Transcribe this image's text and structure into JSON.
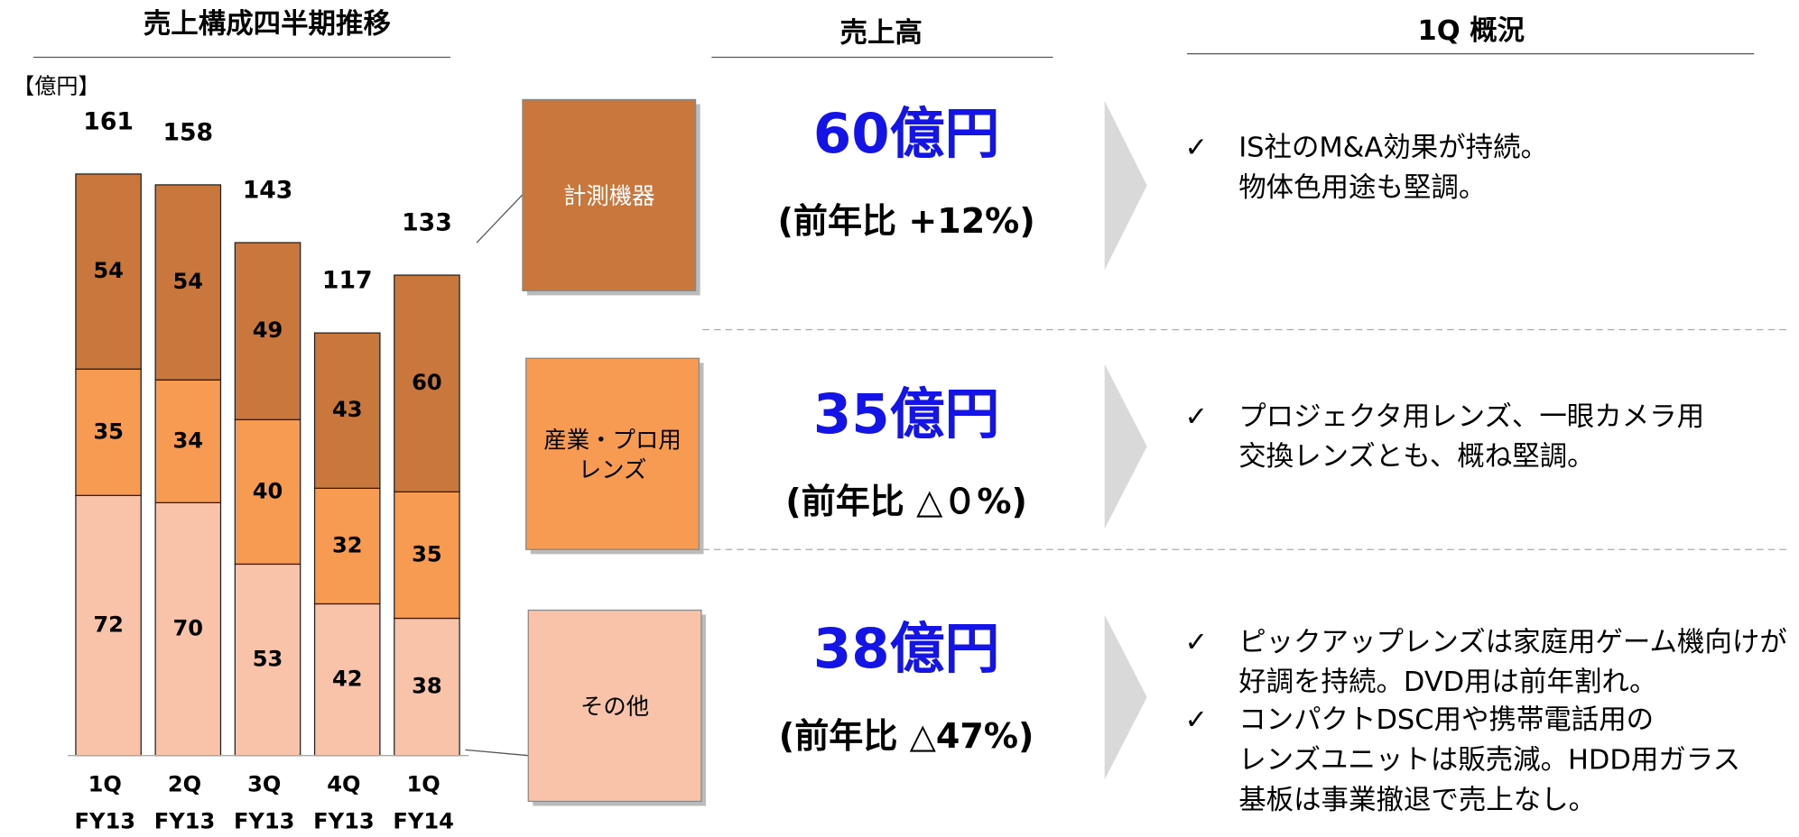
{
  "chart_data": {
    "type": "stacked_bar",
    "title": "売上構成四半期推移",
    "unit_label": "【億円】",
    "categories": [
      "1Q",
      "2Q",
      "3Q",
      "4Q",
      "1Q"
    ],
    "fiscal_years": [
      "FY13",
      "FY13",
      "FY13",
      "FY13",
      "FY14"
    ],
    "series": [
      {
        "name": "その他",
        "color": "#f9c3a9",
        "values": [
          72,
          70,
          53,
          42,
          38
        ]
      },
      {
        "name": "産業・プロ用レンズ",
        "color": "#f79a52",
        "values": [
          35,
          34,
          40,
          32,
          35
        ]
      },
      {
        "name": "計測機器",
        "color": "#c9773c",
        "values": [
          54,
          54,
          49,
          43,
          60
        ]
      }
    ],
    "totals": [
      161,
      158,
      143,
      117,
      133
    ]
  },
  "sales": {
    "title": "売上高",
    "items": [
      {
        "amount": "60億円",
        "yoy": "(前年比 +12%)"
      },
      {
        "amount": "35億円",
        "yoy": "(前年比 △０%)"
      },
      {
        "amount": "38億円",
        "yoy": "(前年比 △47%)"
      }
    ]
  },
  "overview": {
    "title": "1Q 概況",
    "mark": "✓",
    "bullets": [
      {
        "lines": [
          "IS社のM&A効果が持続。",
          "物体色用途も堅調。"
        ]
      },
      {
        "lines": [
          "プロジェクタ用レンズ、一眼カメラ用",
          "交換レンズとも、概ね堅調。"
        ]
      },
      {
        "lines": [
          "ピックアップレンズは家庭用ゲーム機向けが",
          "好調を持続。DVD用は前年割れ。"
        ]
      },
      {
        "lines": [
          "コンパクトDSC用や携帯電話用の",
          "レンズユニットは販売減。HDD用ガラス",
          "基板は事業撤退で売上なし。"
        ]
      }
    ]
  }
}
